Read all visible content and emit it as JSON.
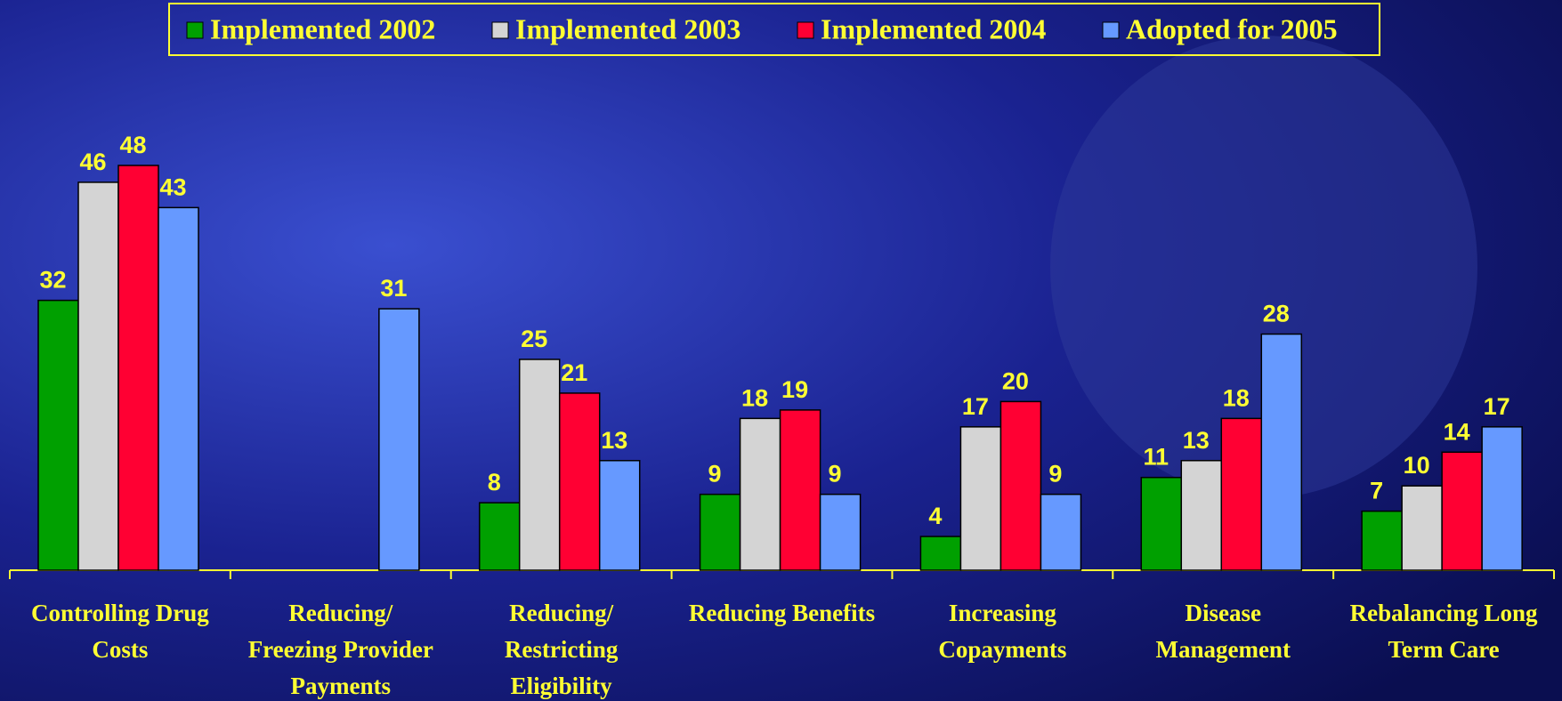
{
  "chart_data": {
    "type": "bar",
    "categories": [
      "Controlling Drug\nCosts",
      "Reducing/\nFreezing Provider\nPayments",
      "Reducing/\nRestricting\nEligibility",
      "Reducing Benefits",
      "Increasing\nCopayments",
      "Disease\nManagement",
      "Rebalancing Long\nTerm Care"
    ],
    "series": [
      {
        "name": "Implemented 2002",
        "color": "#00a000",
        "values": [
          32,
          null,
          8,
          9,
          4,
          11,
          7
        ]
      },
      {
        "name": "Implemented 2003",
        "color": "#d4d4d4",
        "values": [
          46,
          null,
          25,
          18,
          17,
          13,
          10
        ]
      },
      {
        "name": "Implemented 2004",
        "color": "#ff0033",
        "values": [
          48,
          null,
          21,
          19,
          20,
          18,
          14
        ]
      },
      {
        "name": "Adopted for 2005",
        "color": "#6699ff",
        "values": [
          43,
          31,
          13,
          9,
          9,
          28,
          17
        ]
      }
    ],
    "ylim": [
      0,
      50
    ],
    "legend": "top"
  }
}
